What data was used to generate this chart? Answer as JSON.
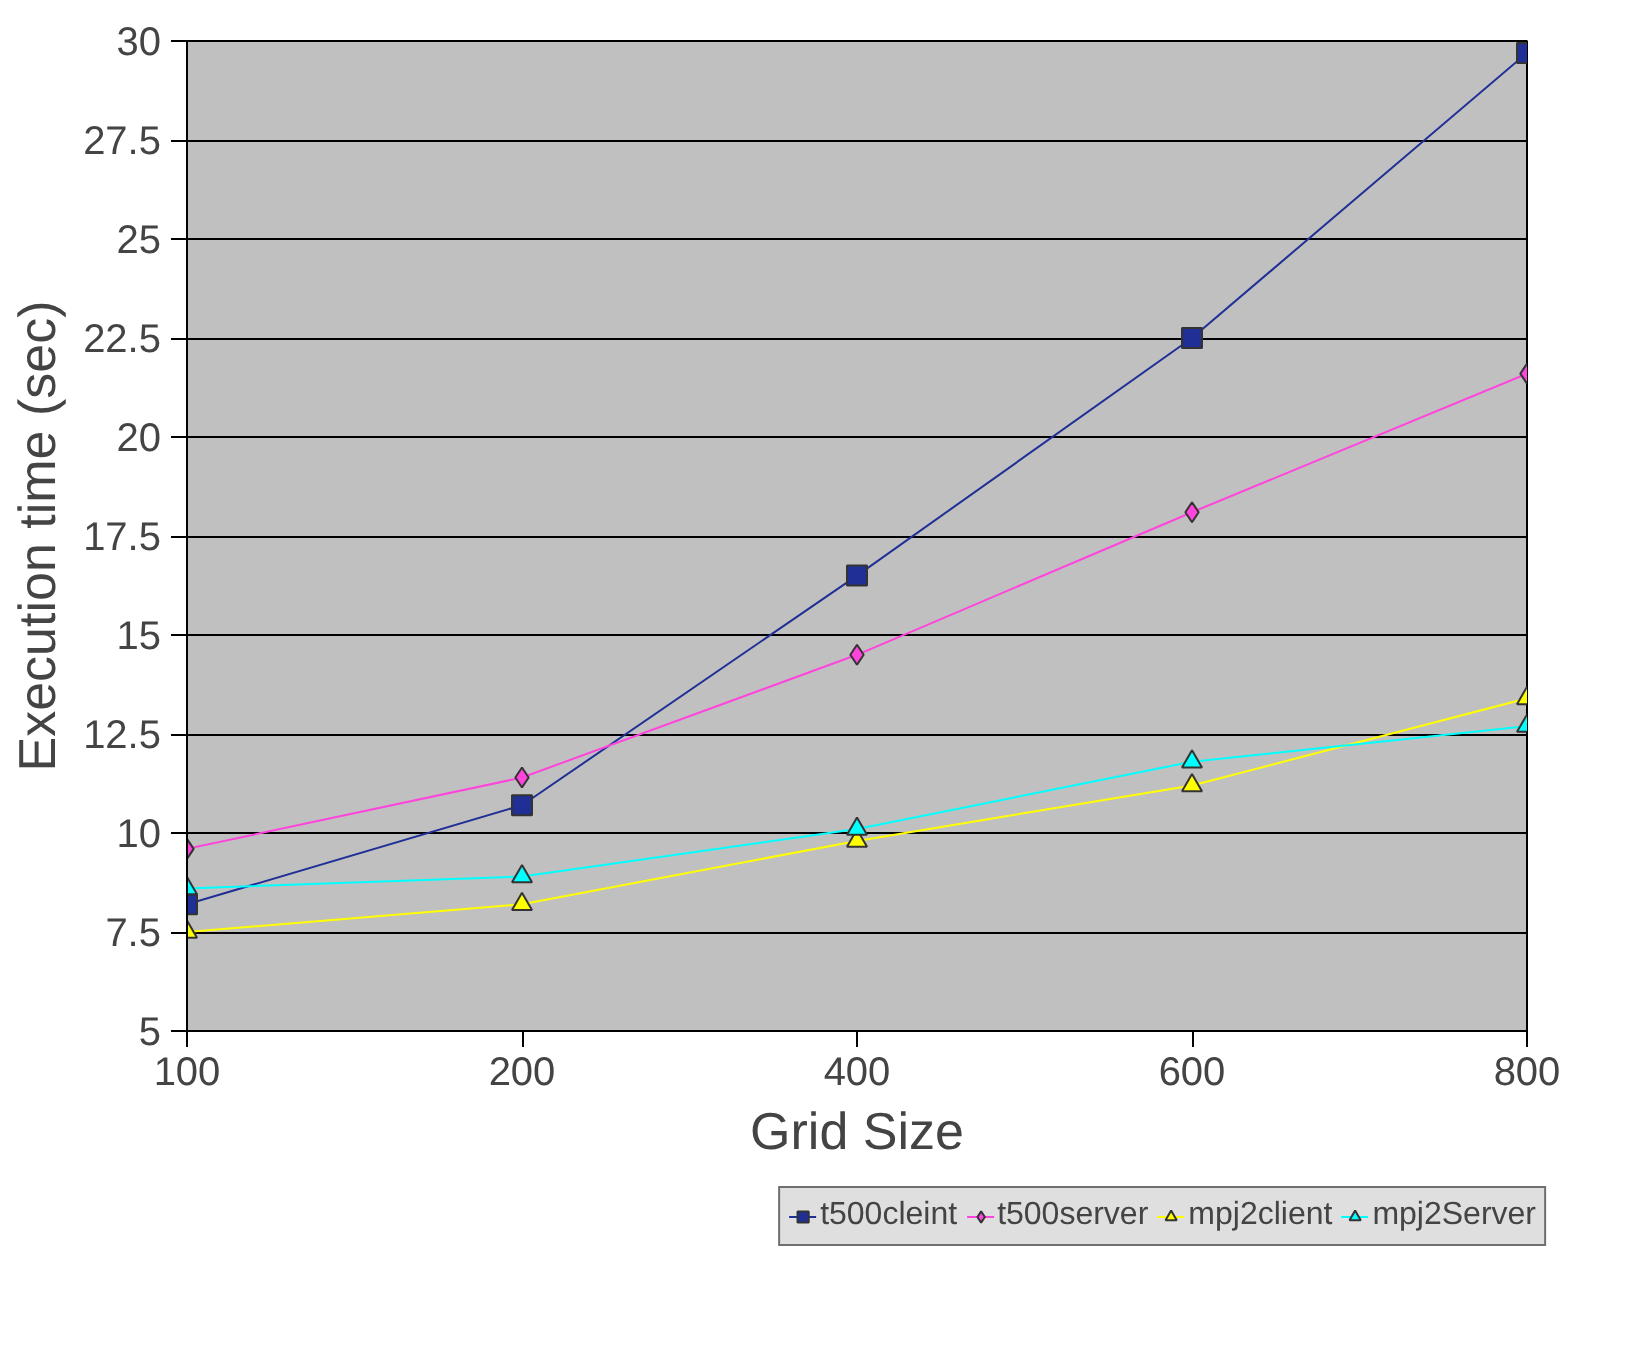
{
  "chart_data": {
    "type": "line",
    "xlabel": "Grid Size",
    "ylabel": "Execution time (sec)",
    "categories": [
      "100",
      "200",
      "400",
      "600",
      "800"
    ],
    "ylim": [
      5,
      30
    ],
    "yticks": [
      5,
      7.5,
      10,
      12.5,
      15,
      17.5,
      20,
      22.5,
      25,
      27.5,
      30
    ],
    "grid": "y",
    "legend": "bottom",
    "series": [
      {
        "name": "t500cleint",
        "color": "#1f2f96",
        "marker": "square",
        "values": [
          8.2,
          10.7,
          16.5,
          22.5,
          29.7
        ]
      },
      {
        "name": "t500server",
        "color": "#ff44dd",
        "marker": "diamond",
        "values": [
          9.6,
          11.4,
          14.5,
          18.1,
          21.6
        ]
      },
      {
        "name": "mpj2client",
        "color": "#ffff00",
        "marker": "triangle",
        "values": [
          7.5,
          8.2,
          9.8,
          11.2,
          13.4
        ]
      },
      {
        "name": "mpj2Server",
        "color": "#00ffff",
        "marker": "triangle",
        "values": [
          8.6,
          8.9,
          10.1,
          11.8,
          12.7
        ]
      }
    ]
  }
}
